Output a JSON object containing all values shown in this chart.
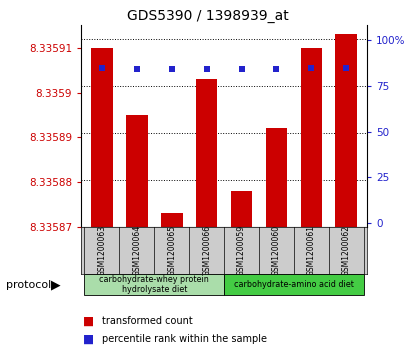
{
  "title": "GDS5390 / 1398939_at",
  "samples": [
    "GSM1200063",
    "GSM1200064",
    "GSM1200065",
    "GSM1200066",
    "GSM1200059",
    "GSM1200060",
    "GSM1200061",
    "GSM1200062"
  ],
  "red_values": [
    8.33591,
    8.335895,
    8.335873,
    8.335903,
    8.335878,
    8.335892,
    8.33591,
    8.335913
  ],
  "blue_values": [
    85,
    84,
    84,
    84,
    84,
    84,
    85,
    85
  ],
  "ymin": 8.33587,
  "ymax": 8.335912,
  "y_ticks": [
    8.33587,
    8.33588,
    8.33589,
    8.3359,
    8.33591
  ],
  "y_tick_labels": [
    "8.33587",
    "8.33588",
    "8.33589",
    "8.3359",
    "8.33591"
  ],
  "y2_ticks": [
    0,
    25,
    50,
    75,
    100
  ],
  "y2_tick_labels": [
    "0",
    "25",
    "50",
    "75",
    "100%"
  ],
  "group1_label": "carbohydrate-whey protein\nhydrolysate diet",
  "group2_label": "carbohydrate-amino acid diet",
  "protocol_label": "protocol",
  "legend_red": "transformed count",
  "legend_blue": "percentile rank within the sample",
  "bar_color": "#cc0000",
  "dot_color": "#2222cc",
  "group1_color": "#aaddaa",
  "group2_color": "#44cc44",
  "sample_bg_color": "#cccccc",
  "plot_bg_color": "#ffffff",
  "left_tick_color": "#cc0000",
  "right_tick_color": "#2222cc",
  "base_value": 8.33587
}
